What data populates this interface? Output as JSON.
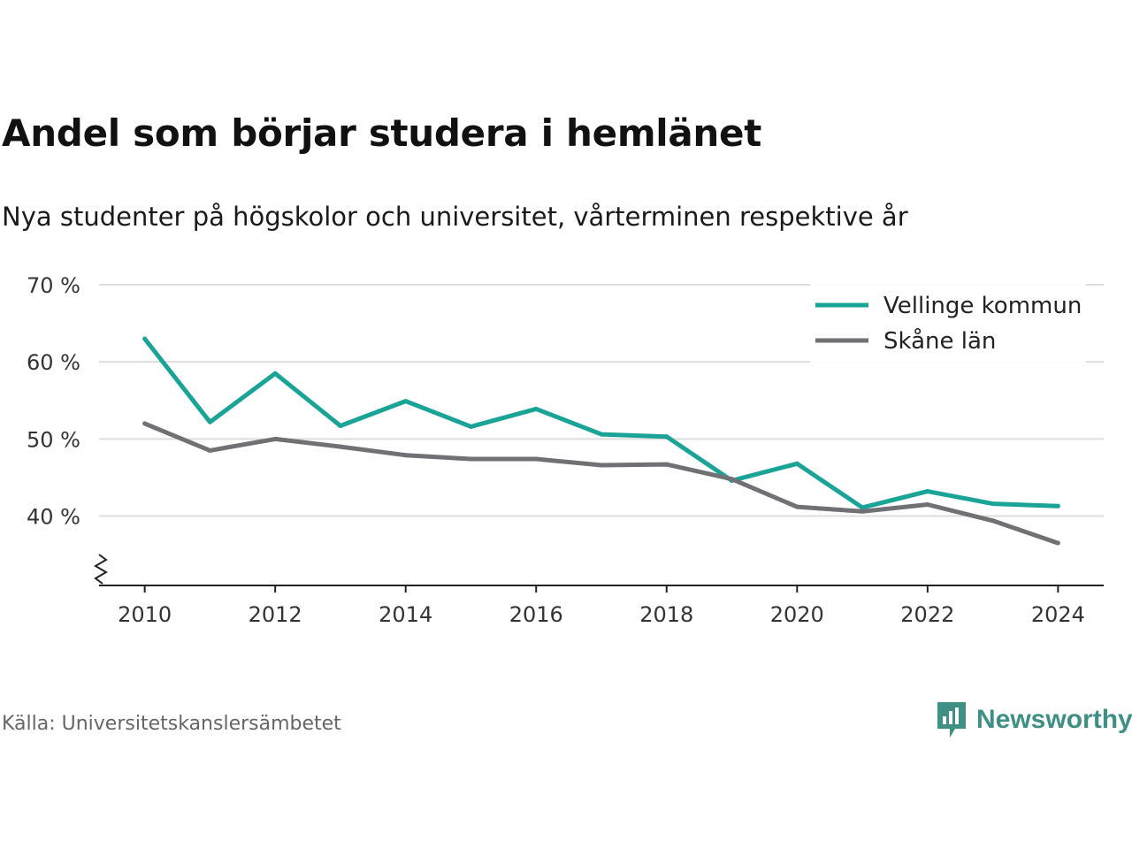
{
  "title": "Andel som börjar studera i hemlänet",
  "subtitle": "Nya studenter på högskolor och universitet, vårterminen respektive år",
  "source": "Källa: Universitetskanslersämbetet",
  "brand": {
    "name": "Newsworthy",
    "icon": "newsworthy-logo-icon",
    "color": "#3e8f84"
  },
  "chart_data": {
    "type": "line",
    "x": [
      2010,
      2011,
      2012,
      2013,
      2014,
      2015,
      2016,
      2017,
      2018,
      2019,
      2020,
      2021,
      2022,
      2023,
      2024
    ],
    "series": [
      {
        "name": "Vellinge kommun",
        "color": "#1aa397",
        "values": [
          63,
          52.2,
          58.5,
          51.7,
          54.9,
          51.6,
          53.9,
          50.6,
          50.3,
          44.6,
          46.8,
          41.1,
          43.2,
          41.6,
          41.3
        ]
      },
      {
        "name": "Skåne län",
        "color": "#717075",
        "values": [
          52,
          48.5,
          50,
          49,
          47.9,
          47.4,
          47.4,
          46.6,
          46.7,
          44.8,
          41.2,
          40.6,
          41.5,
          39.4,
          36.5
        ]
      }
    ],
    "xticks": [
      2010,
      2012,
      2014,
      2016,
      2018,
      2020,
      2022,
      2024
    ],
    "xtick_labels": [
      "2010",
      "2012",
      "2014",
      "2016",
      "2018",
      "2020",
      "2022",
      "2024"
    ],
    "yticks": [
      40,
      50,
      60,
      70
    ],
    "ytick_labels": [
      "40 %",
      "50 %",
      "60 %",
      "70 %"
    ],
    "xlim": [
      2009.3,
      2024.7
    ],
    "ylim": [
      31,
      70
    ],
    "y_axis_break": true,
    "grid": "horizontal",
    "legend_position": "top-right",
    "xlabel": "",
    "ylabel": ""
  }
}
